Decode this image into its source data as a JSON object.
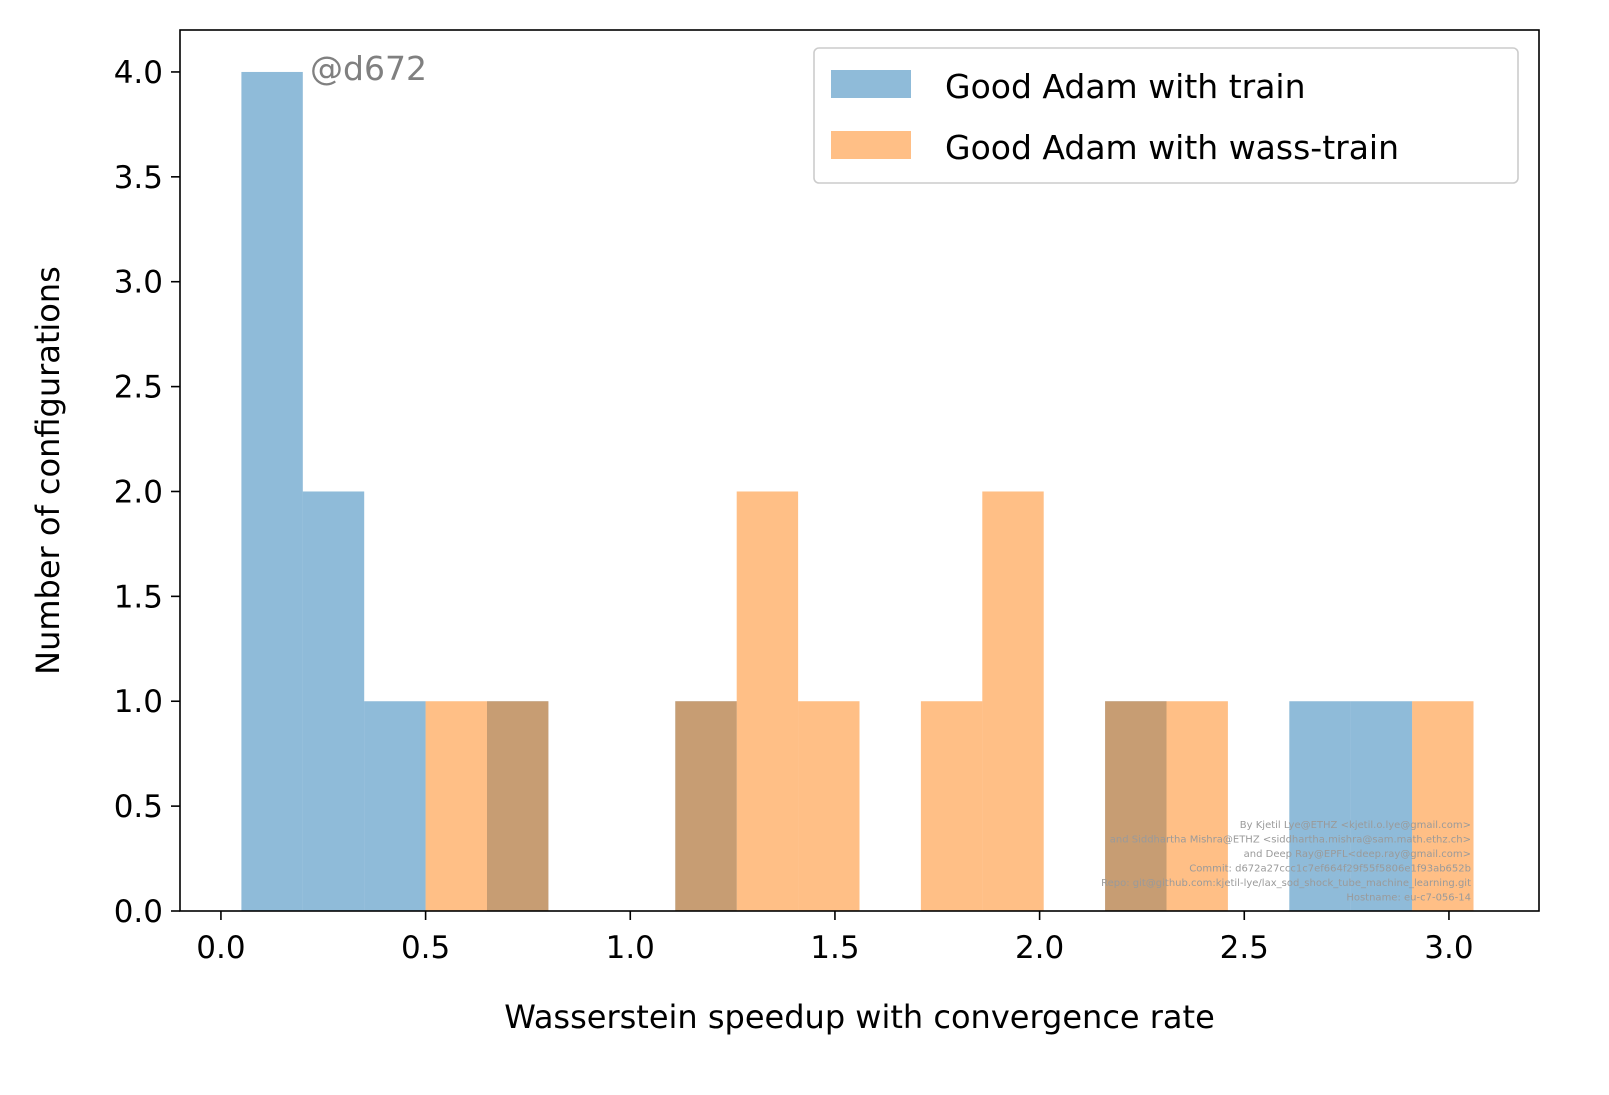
{
  "chart_data": {
    "type": "bar",
    "title": "",
    "xlabel": "Wasserstein speedup with convergence rate",
    "ylabel": "Number of configurations",
    "xlim": [
      -0.1,
      3.22
    ],
    "ylim": [
      0,
      4.2
    ],
    "xticks": [
      "0.0",
      "0.5",
      "1.0",
      "1.5",
      "2.0",
      "2.5",
      "3.0"
    ],
    "yticks": [
      "0.0",
      "0.5",
      "1.0",
      "1.5",
      "2.0",
      "2.5",
      "3.0",
      "3.5",
      "4.0"
    ],
    "grid": false,
    "legend_position": "top-right",
    "series": [
      {
        "name": "Good Adam with train",
        "color": "#1f77b4",
        "alpha": 0.5,
        "bins": [
          {
            "x0": 0.05,
            "x1": 0.2,
            "count": 4
          },
          {
            "x0": 0.2,
            "x1": 0.35,
            "count": 2
          },
          {
            "x0": 0.35,
            "x1": 0.5,
            "count": 1
          },
          {
            "x0": 0.65,
            "x1": 0.8,
            "count": 1
          },
          {
            "x0": 1.11,
            "x1": 1.26,
            "count": 1
          },
          {
            "x0": 2.16,
            "x1": 2.31,
            "count": 1
          },
          {
            "x0": 2.61,
            "x1": 2.76,
            "count": 1
          },
          {
            "x0": 2.76,
            "x1": 2.91,
            "count": 1
          }
        ]
      },
      {
        "name": "Good Adam with wass-train",
        "color": "#ff7f0e",
        "alpha": 0.5,
        "bins": [
          {
            "x0": 0.5,
            "x1": 0.65,
            "count": 1
          },
          {
            "x0": 0.65,
            "x1": 0.8,
            "count": 1
          },
          {
            "x0": 1.11,
            "x1": 1.26,
            "count": 1
          },
          {
            "x0": 1.26,
            "x1": 1.41,
            "count": 2
          },
          {
            "x0": 1.41,
            "x1": 1.56,
            "count": 1
          },
          {
            "x0": 1.71,
            "x1": 1.86,
            "count": 1
          },
          {
            "x0": 1.86,
            "x1": 2.01,
            "count": 2
          },
          {
            "x0": 2.16,
            "x1": 2.31,
            "count": 1
          },
          {
            "x0": 2.31,
            "x1": 2.46,
            "count": 1
          },
          {
            "x0": 2.91,
            "x1": 3.06,
            "count": 1
          }
        ]
      }
    ],
    "annotation": "@d672",
    "credits": [
      "By Kjetil Lye@ETHZ <kjetil.o.lye@gmail.com>",
      "and Siddhartha Mishra@ETHZ <siddhartha.mishra@sam.math.ethz.ch>",
      "and Deep Ray@EPFL<deep.ray@gmail.com>",
      "Commit: d672a27ccc1c7ef664f29f55f5806e1f93ab652b",
      "Repo: git@github.com:kjetil-lye/lax_sod_shock_tube_machine_learning.git",
      "Hostname: eu-c7-056-14"
    ]
  }
}
